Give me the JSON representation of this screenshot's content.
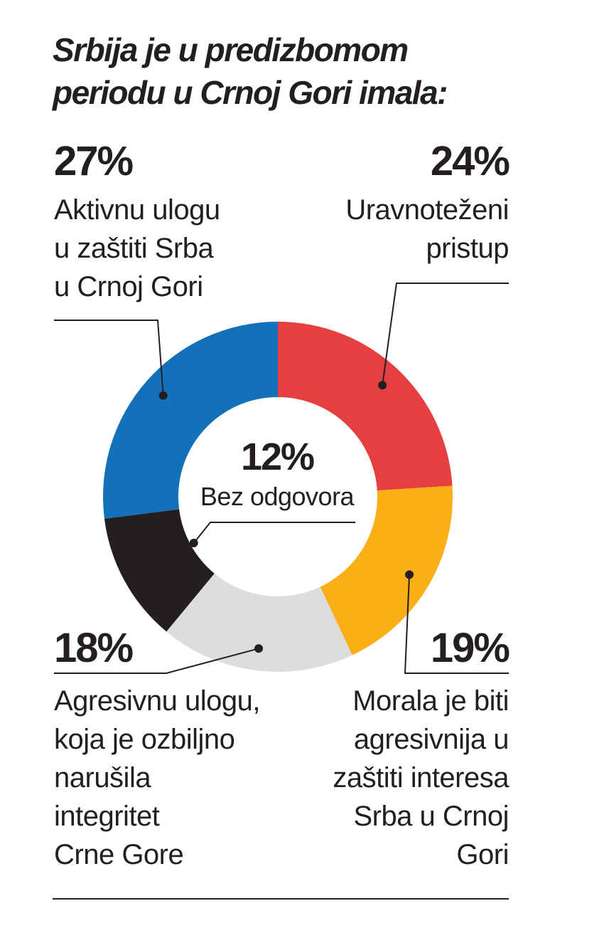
{
  "title": {
    "line1": "Srbija je u predizbomom",
    "line2": "periodu u Crnoj Gori imala:"
  },
  "chart_data": {
    "type": "pie",
    "variant": "donut",
    "start_angle_deg": 0,
    "direction": "clockwise",
    "slices": [
      {
        "value": 24,
        "pct_label": "24%",
        "label_lines": [
          "Uravnoteženi",
          "pristup"
        ],
        "color": "#e5403f"
      },
      {
        "value": 19,
        "pct_label": "19%",
        "label_lines": [
          "Morala je biti",
          "agresivnija u",
          "zaštiti interesa",
          "Srba u Crnoj",
          "Gori"
        ],
        "color": "#fbaf17"
      },
      {
        "value": 18,
        "pct_label": "18%",
        "label_lines": [
          "Agresivnu ulogu,",
          "koja je ozbiljno",
          "narušila",
          "integritet",
          "Crne Gore"
        ],
        "color": "#dcdddf"
      },
      {
        "value": 12,
        "pct_label": "12%",
        "label_lines": [
          "Bez odgovora"
        ],
        "color": "#231f20"
      },
      {
        "value": 27,
        "pct_label": "27%",
        "label_lines": [
          "Aktivnu ulogu",
          "u zaštiti Srba",
          "u Crnoj Gori"
        ],
        "color": "#1271b9"
      }
    ]
  }
}
